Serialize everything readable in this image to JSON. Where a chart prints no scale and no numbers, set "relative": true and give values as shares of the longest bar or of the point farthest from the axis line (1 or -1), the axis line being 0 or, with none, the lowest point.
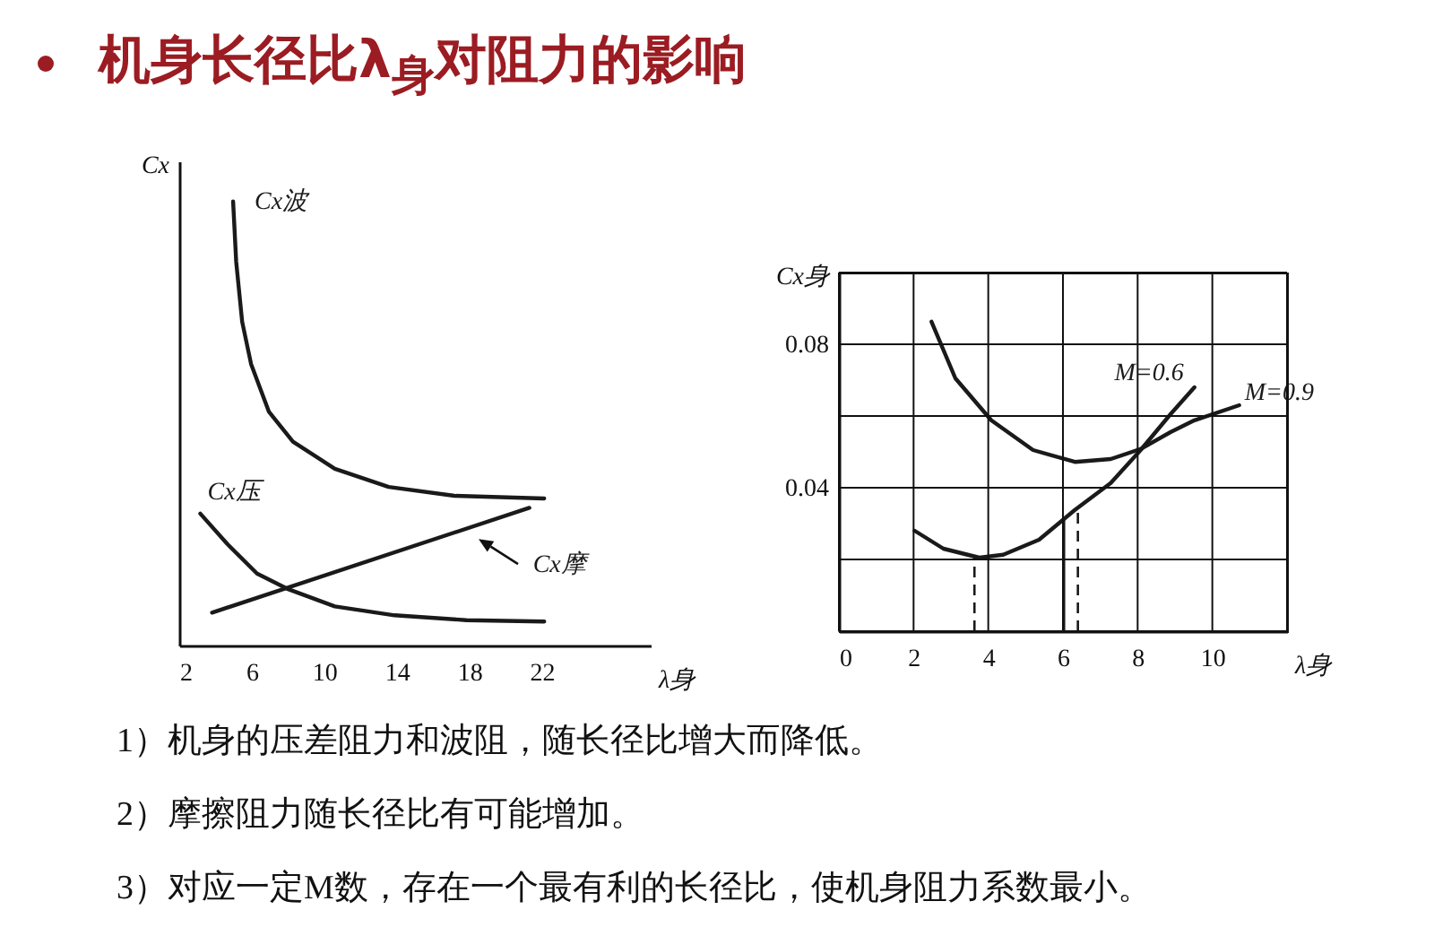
{
  "chart_data": [
    {
      "type": "line",
      "title": "机身长径比λ$_{身}$对阻力的影响",
      "xlabel": "λ身",
      "ylabel": "Cx",
      "relative": true,
      "xlim": [
        2,
        28
      ],
      "xticks": [
        2,
        6,
        10,
        14,
        18,
        22
      ],
      "tick_labels": "x",
      "series": [
        {
          "name": "Cx波",
          "color": "#1a1a1a",
          "x": [
            4.97,
            5.14,
            5.47,
            5.96,
            6.95,
            8.27,
            10.58,
            13.55,
            17.18,
            22.13
          ],
          "values": [
            1.0,
            0.864,
            0.729,
            0.634,
            0.526,
            0.459,
            0.398,
            0.357,
            0.337,
            0.331
          ]
        },
        {
          "name": "Cx压",
          "color": "#1a1a1a",
          "x": [
            3.16,
            4.64,
            6.29,
            7.94,
            10.58,
            13.88,
            17.84,
            22.13
          ],
          "values": [
            0.297,
            0.229,
            0.162,
            0.128,
            0.088,
            0.068,
            0.057,
            0.054
          ]
        },
        {
          "name": "Cx摩",
          "color": "#1a1a1a",
          "x": [
            3.81,
            21.31
          ],
          "values": [
            0.074,
            0.31
          ]
        }
      ],
      "annotations": [
        "1）机身的压差阻力和波阻，随长径比增大而降低。",
        "2）摩擦阻力随长径比有可能增加。",
        "3）对应一定M数，存在一个最有利的长径比，使机身阻力系数最小。"
      ]
    },
    {
      "type": "line",
      "xlabel": "λ身",
      "ylabel": "Cx身",
      "xlim": [
        0,
        12
      ],
      "ylim": [
        0,
        0.1
      ],
      "grid": true,
      "xticks": [
        0,
        2,
        4,
        6,
        8,
        10,
        {
          "value": 12,
          "label": null
        }
      ],
      "yticks": [
        {
          "value": 0,
          "label": null
        },
        {
          "value": 0.02,
          "label": null
        },
        0.04,
        {
          "value": 0.06,
          "label": null
        },
        0.08,
        {
          "value": 0.1,
          "label": null
        }
      ],
      "series": [
        {
          "name": "M=0.6",
          "color": "#1a1a1a",
          "x": [
            2.03,
            2.8,
            3.76,
            4.4,
            5.36,
            6.32,
            7.28,
            8.08,
            8.88,
            9.52
          ],
          "values": [
            0.028,
            0.023,
            0.0205,
            0.0213,
            0.0255,
            0.0338,
            0.0413,
            0.0505,
            0.0605,
            0.068
          ]
        },
        {
          "name": "M=0.9",
          "color": "#1a1a1a",
          "x": [
            2.48,
            3.12,
            4.08,
            5.2,
            6.32,
            7.28,
            8.08,
            8.88,
            9.52,
            10.72
          ],
          "values": [
            0.0863,
            0.0705,
            0.0588,
            0.0505,
            0.0472,
            0.048,
            0.0508,
            0.0555,
            0.0588,
            0.063
          ]
        }
      ],
      "ref_lines": [
        {
          "axis": "x",
          "value": 3.63,
          "line_style": "dashed",
          "color": "#1a1a1a"
        },
        {
          "axis": "x",
          "value": 6.03,
          "line_style": "solid",
          "color": "#1a1a1a"
        },
        {
          "axis": "x",
          "value": 6.4,
          "line_style": "dashed",
          "color": "#1a1a1a"
        }
      ]
    }
  ]
}
